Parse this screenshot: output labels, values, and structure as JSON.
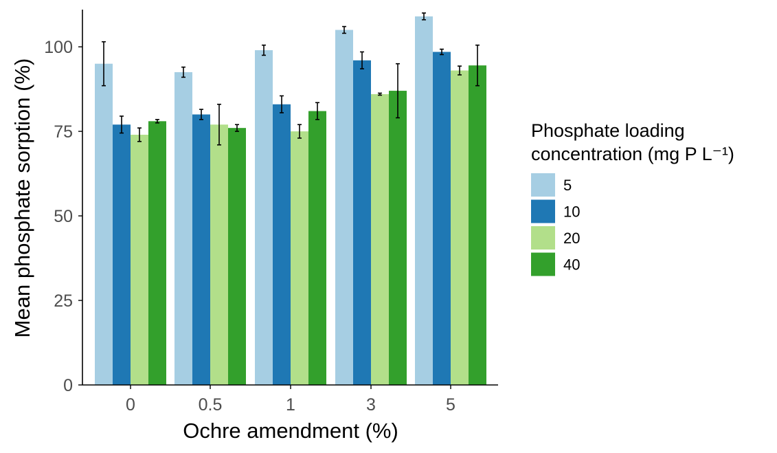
{
  "chart_data": {
    "type": "bar",
    "title": "",
    "xlabel": "Ochre amendment (%)",
    "ylabel": "Mean phosphate sorption (%)",
    "categories": [
      "0",
      "0.5",
      "1",
      "3",
      "5"
    ],
    "ylim": [
      0,
      111
    ],
    "yticks": [
      0,
      25,
      50,
      75,
      100
    ],
    "grid": false,
    "legend_position": "right",
    "legend_title_line1": "Phosphate loading",
    "legend_title_line2": "concentration (mg P L⁻¹)",
    "series": [
      {
        "name": "5",
        "color": "#a6cee3",
        "values": [
          95.0,
          92.5,
          99.0,
          105.0,
          109.0
        ],
        "errors": [
          6.5,
          1.5,
          1.5,
          1.0,
          1.0
        ]
      },
      {
        "name": "10",
        "color": "#1f78b4",
        "values": [
          77.0,
          80.0,
          83.0,
          96.0,
          98.5
        ],
        "errors": [
          2.5,
          1.5,
          2.5,
          2.5,
          0.8
        ]
      },
      {
        "name": "20",
        "color": "#b2df8a",
        "values": [
          74.0,
          77.0,
          75.0,
          86.0,
          93.0
        ],
        "errors": [
          2.0,
          6.0,
          2.0,
          0.3,
          1.3
        ]
      },
      {
        "name": "40",
        "color": "#33a02c",
        "values": [
          78.0,
          76.0,
          81.0,
          87.0,
          94.5
        ],
        "errors": [
          0.5,
          1.0,
          2.5,
          8.0,
          6.0
        ]
      }
    ]
  }
}
